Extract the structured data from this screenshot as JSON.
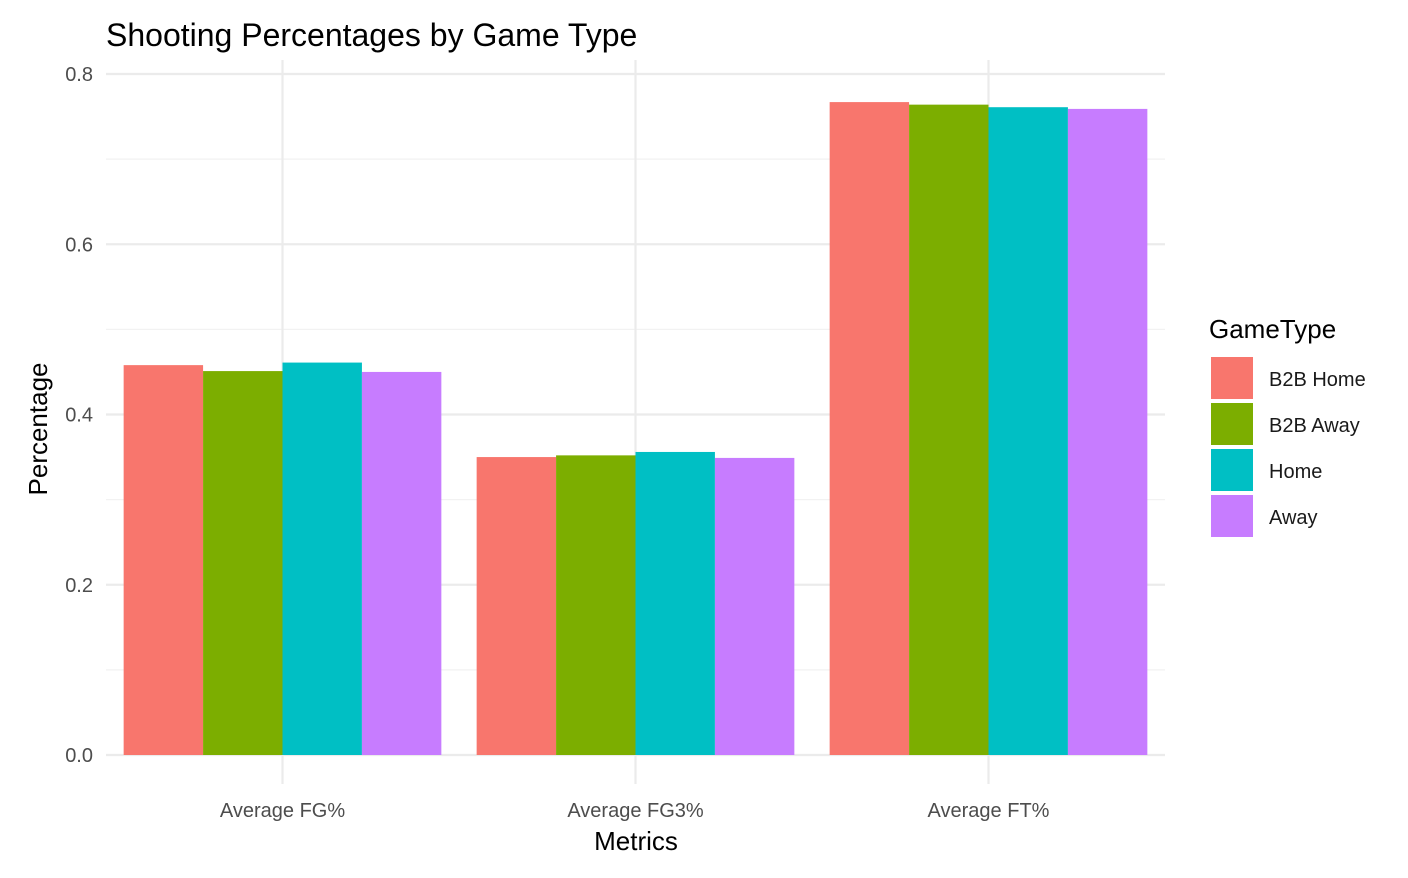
{
  "chart_data": {
    "type": "bar",
    "title": "Shooting Percentages by Game Type",
    "xlabel": "Metrics",
    "ylabel": "Percentage",
    "categories": [
      "Average FG%",
      "Average FG3%",
      "Average FT%"
    ],
    "ylim": [
      0,
      0.8
    ],
    "yticks": [
      "0.0",
      "0.2",
      "0.4",
      "0.6",
      "0.8"
    ],
    "grid": true,
    "legend": {
      "title": "GameType",
      "placement": "right"
    },
    "series": [
      {
        "name": "B2B Home",
        "color": "#F8766D",
        "values": [
          0.458,
          0.35,
          0.767
        ]
      },
      {
        "name": "B2B Away",
        "color": "#7CAE00",
        "values": [
          0.451,
          0.352,
          0.764
        ]
      },
      {
        "name": "Home",
        "color": "#00BFC4",
        "values": [
          0.461,
          0.356,
          0.761
        ]
      },
      {
        "name": "Away",
        "color": "#C77CFF",
        "values": [
          0.45,
          0.349,
          0.759
        ]
      }
    ]
  }
}
